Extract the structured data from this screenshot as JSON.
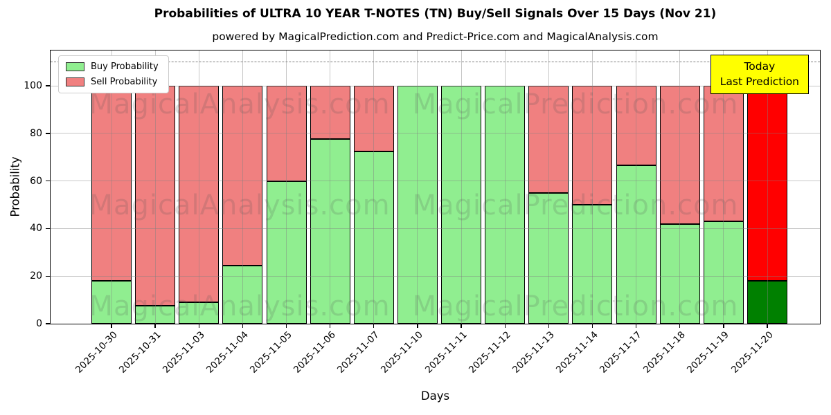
{
  "title": "Probabilities of ULTRA 10 YEAR T-NOTES (TN) Buy/Sell Signals Over 15 Days (Nov 21)",
  "subtitle": "powered by MagicalPrediction.com and Predict-Price.com and MagicalAnalysis.com",
  "today_box": {
    "line1": "Today",
    "line2": "Last Prediction",
    "bg_color": "#ffff00"
  },
  "legend": [
    {
      "label": "Buy Probability",
      "color": "#90ee90"
    },
    {
      "label": "Sell Probability",
      "color": "#f08080"
    }
  ],
  "watermarks": [
    "MagicalAnalysis.com",
    "MagicalPrediction.com"
  ],
  "chart_data": {
    "type": "bar",
    "stacked": true,
    "title": "Probabilities of ULTRA 10 YEAR T-NOTES (TN) Buy/Sell Signals Over 15 Days (Nov 21)",
    "xlabel": "Days",
    "ylabel": "Probability",
    "ylim": [
      0,
      115
    ],
    "yticks": [
      0,
      20,
      40,
      60,
      80,
      100
    ],
    "grid": true,
    "legend_position": "upper left",
    "dashed_reference_line_y": 110,
    "categories": [
      "2025-10-30",
      "2025-10-31",
      "2025-11-03",
      "2025-11-04",
      "2025-11-05",
      "2025-11-06",
      "2025-11-07",
      "2025-11-10",
      "2025-11-11",
      "2025-11-12",
      "2025-11-13",
      "2025-11-14",
      "2025-11-17",
      "2025-11-18",
      "2025-11-19",
      "2025-11-20"
    ],
    "series": [
      {
        "name": "Buy Probability",
        "color": "#90ee90",
        "last_bar_color": "#008000",
        "values": [
          18,
          7.5,
          9,
          24.5,
          60,
          77.5,
          72.5,
          100,
          100,
          100,
          55,
          50,
          66.5,
          42,
          43,
          18
        ]
      },
      {
        "name": "Sell Probability",
        "color": "#f08080",
        "last_bar_color": "#ff0000",
        "values": [
          82,
          92.5,
          91,
          75.5,
          40,
          22.5,
          27.5,
          0,
          0,
          0,
          45,
          50,
          33.5,
          58,
          57,
          82
        ]
      }
    ]
  }
}
